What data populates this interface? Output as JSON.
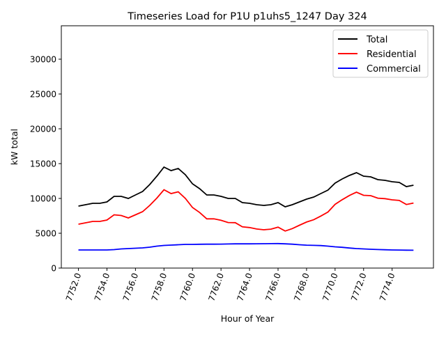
{
  "chart_data": {
    "type": "line",
    "title": "Timeseries Load for P1U p1uhs5_1247  Day 324",
    "xlabel": "Hour of Year",
    "ylabel": "kW total",
    "xlim": [
      7750.8,
      7776.9
    ],
    "ylim": [
      0,
      34800
    ],
    "xticks": [
      7752,
      7754,
      7756,
      7758,
      7760,
      7762,
      7764,
      7766,
      7768,
      7770,
      7772,
      7774
    ],
    "xtick_labels": [
      "7752.0",
      "7754.0",
      "7756.0",
      "7758.0",
      "7760.0",
      "7762.0",
      "7764.0",
      "7766.0",
      "7768.0",
      "7770.0",
      "7772.0",
      "7774.0"
    ],
    "yticks": [
      0,
      5000,
      10000,
      15000,
      20000,
      25000,
      30000
    ],
    "ytick_labels": [
      "0",
      "5000",
      "10000",
      "15000",
      "20000",
      "25000",
      "30000"
    ],
    "legend_position": "top-right",
    "x": [
      7752,
      7752.5,
      7753,
      7753.5,
      7754,
      7754.5,
      7755,
      7755.5,
      7756,
      7756.5,
      7757,
      7757.5,
      7758,
      7758.5,
      7759,
      7759.5,
      7760,
      7760.5,
      7761,
      7761.5,
      7762,
      7762.5,
      7763,
      7763.5,
      7764,
      7764.5,
      7765,
      7765.5,
      7766,
      7766.5,
      7767,
      7767.5,
      7768,
      7768.5,
      7769,
      7769.5,
      7770,
      7770.5,
      7771,
      7771.5,
      7772,
      7772.5,
      7773,
      7773.5,
      7774,
      7774.5,
      7775,
      7775.5
    ],
    "series": [
      {
        "name": "Total",
        "color": "#000000",
        "values": [
          8900,
          9100,
          9300,
          9300,
          9500,
          10300,
          10300,
          10000,
          10500,
          11000,
          12000,
          13200,
          14500,
          14000,
          14300,
          13400,
          12100,
          11400,
          10500,
          10500,
          10300,
          10000,
          10000,
          9400,
          9300,
          9100,
          9000,
          9100,
          9400,
          8800,
          9100,
          9500,
          9900,
          10200,
          10700,
          11200,
          12200,
          12800,
          13300,
          13700,
          13200,
          13100,
          12700,
          12600,
          12400,
          12300,
          11700,
          11900
        ]
      },
      {
        "name": "Residential",
        "color": "#ff0000",
        "values": [
          6300,
          6500,
          6700,
          6700,
          6900,
          7650,
          7550,
          7200,
          7650,
          8100,
          9000,
          10050,
          11250,
          10700,
          10950,
          10000,
          8700,
          7980,
          7070,
          7070,
          6860,
          6540,
          6520,
          5920,
          5820,
          5610,
          5500,
          5590,
          5880,
          5320,
          5670,
          6150,
          6610,
          6940,
          7470,
          8050,
          9150,
          9820,
          10420,
          10900,
          10450,
          10400,
          10040,
          9970,
          9800,
          9710,
          9130,
          9340
        ]
      },
      {
        "name": "Commercial",
        "color": "#0000ff",
        "values": [
          2600,
          2600,
          2600,
          2600,
          2600,
          2650,
          2750,
          2800,
          2850,
          2900,
          3000,
          3150,
          3250,
          3300,
          3350,
          3400,
          3400,
          3420,
          3430,
          3430,
          3440,
          3460,
          3480,
          3480,
          3480,
          3490,
          3500,
          3510,
          3520,
          3480,
          3430,
          3350,
          3290,
          3260,
          3230,
          3150,
          3050,
          2980,
          2880,
          2800,
          2750,
          2700,
          2660,
          2630,
          2600,
          2590,
          2570,
          2560
        ]
      }
    ]
  }
}
